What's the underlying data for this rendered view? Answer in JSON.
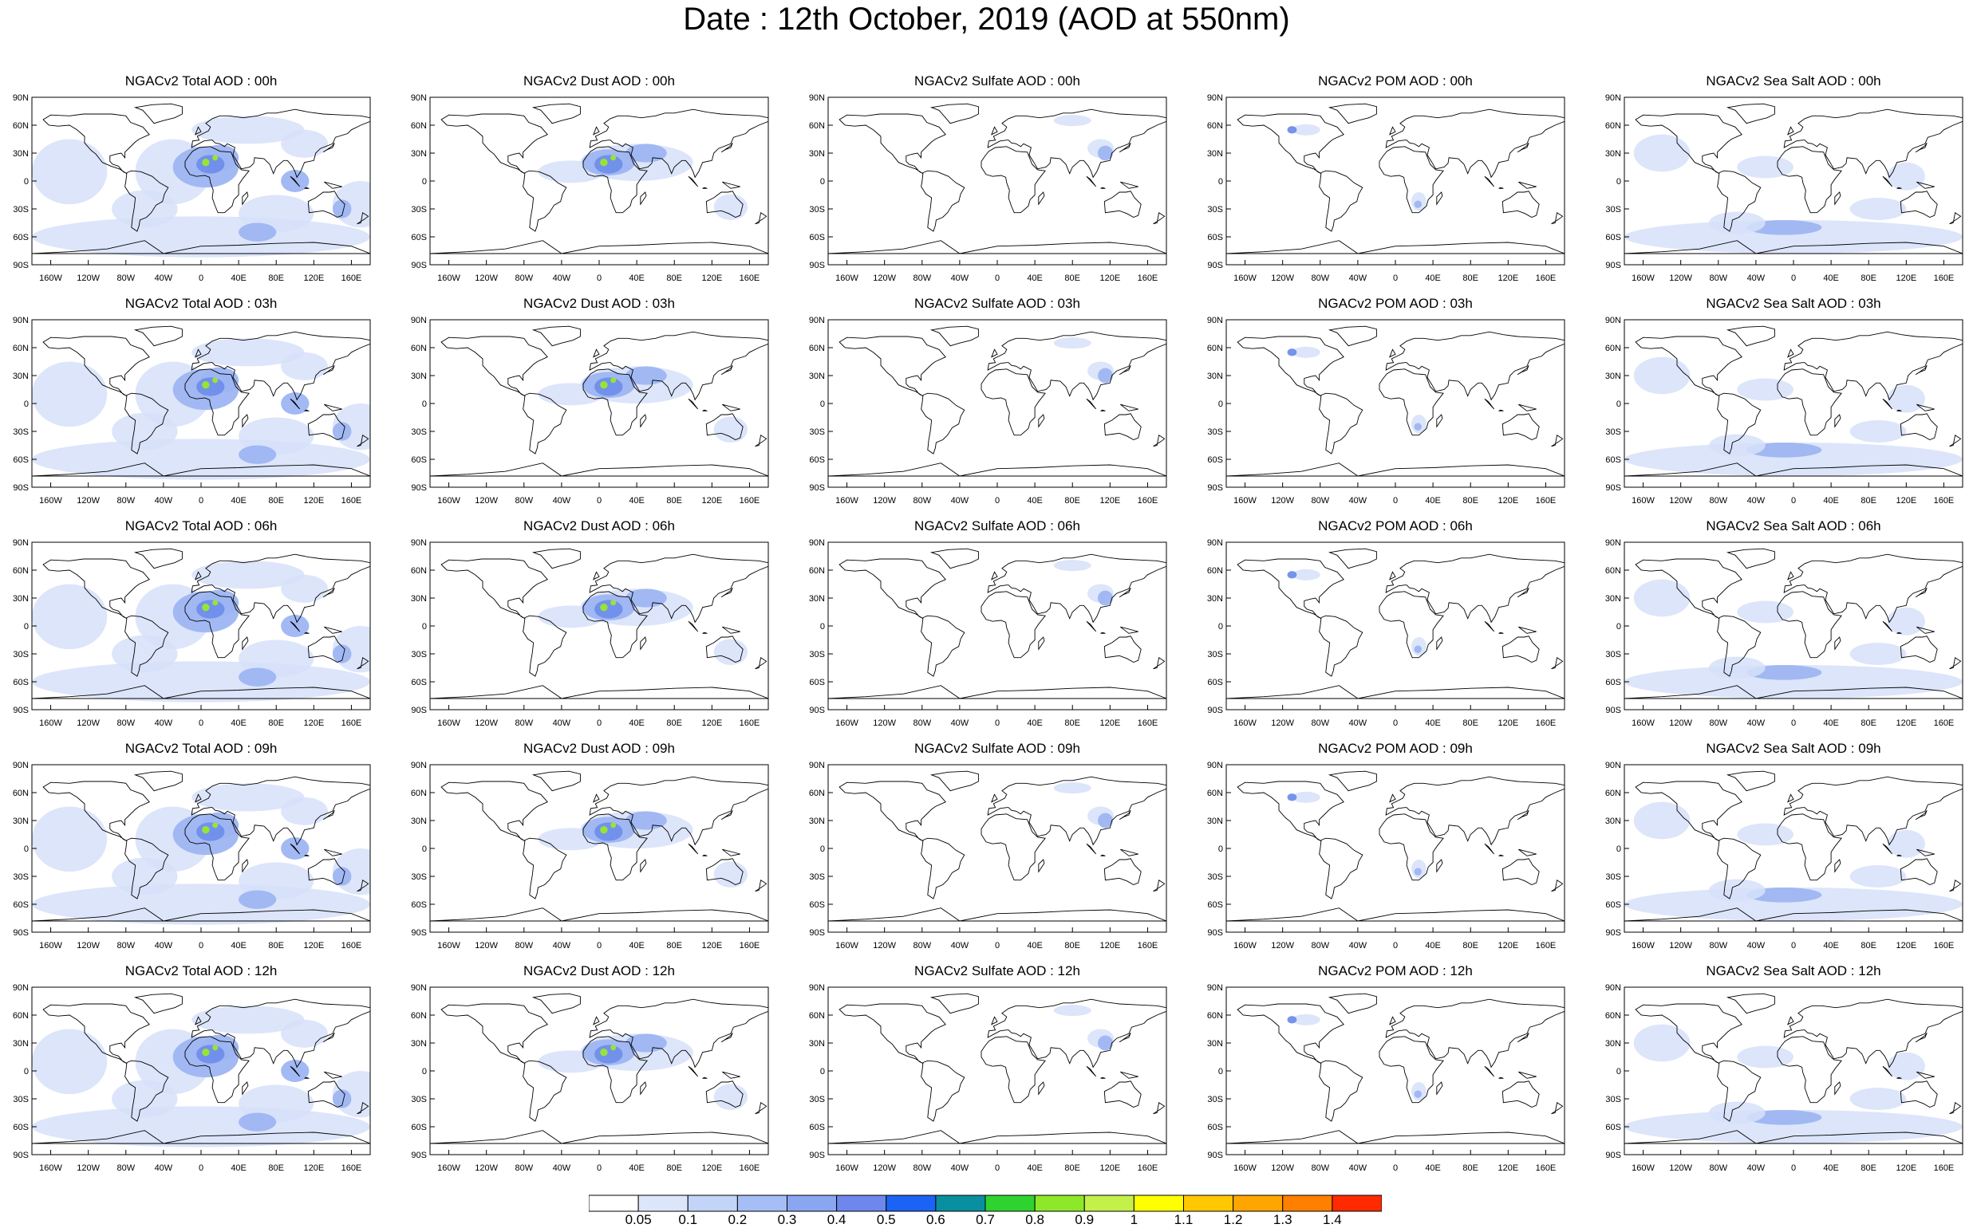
{
  "title": "Date : 12th October, 2019 (AOD at 550nm)",
  "panels": [
    {
      "title": "NGACv2 Total AOD : 00h",
      "species": "total"
    },
    {
      "title": "NGACv2 Dust AOD : 00h",
      "species": "dust"
    },
    {
      "title": "NGACv2 Sulfate AOD : 00h",
      "species": "sulfate"
    },
    {
      "title": "NGACv2 POM AOD : 00h",
      "species": "pom"
    },
    {
      "title": "NGACv2 Sea Salt AOD : 00h",
      "species": "seasalt"
    },
    {
      "title": "NGACv2 Total AOD : 03h",
      "species": "total"
    },
    {
      "title": "NGACv2 Dust AOD : 03h",
      "species": "dust"
    },
    {
      "title": "NGACv2 Sulfate AOD : 03h",
      "species": "sulfate"
    },
    {
      "title": "NGACv2 POM AOD : 03h",
      "species": "pom"
    },
    {
      "title": "NGACv2 Sea Salt AOD : 03h",
      "species": "seasalt"
    },
    {
      "title": "NGACv2 Total AOD : 06h",
      "species": "total"
    },
    {
      "title": "NGACv2 Dust AOD : 06h",
      "species": "dust"
    },
    {
      "title": "NGACv2 Sulfate AOD : 06h",
      "species": "sulfate"
    },
    {
      "title": "NGACv2 POM AOD : 06h",
      "species": "pom"
    },
    {
      "title": "NGACv2 Sea Salt AOD : 06h",
      "species": "seasalt"
    },
    {
      "title": "NGACv2 Total AOD : 09h",
      "species": "total"
    },
    {
      "title": "NGACv2 Dust AOD : 09h",
      "species": "dust"
    },
    {
      "title": "NGACv2 Sulfate AOD : 09h",
      "species": "sulfate"
    },
    {
      "title": "NGACv2 POM AOD : 09h",
      "species": "pom"
    },
    {
      "title": "NGACv2 Sea Salt  AOD : 09h",
      "species": "seasalt"
    },
    {
      "title": "NGACv2 Total AOD : 12h",
      "species": "total"
    },
    {
      "title": "NGACv2 Dust AOD : 12h",
      "species": "dust"
    },
    {
      "title": "NGACv2 Sulfate AOD : 12h",
      "species": "sulfate"
    },
    {
      "title": "NGACv2 POM  AOD : 12h",
      "species": "pom"
    },
    {
      "title": "NGACv2 Sea Salt  AOD : 12h",
      "species": "seasalt"
    }
  ],
  "lat_labels": [
    "90N",
    "60N",
    "30N",
    "0",
    "30S",
    "60S",
    "90S"
  ],
  "lon_labels": [
    "160W",
    "120W",
    "80W",
    "40W",
    "0",
    "40E",
    "80E",
    "120E",
    "160E"
  ],
  "colorbar": {
    "colors": [
      "#ffffff",
      "#dce6fb",
      "#c2d4f8",
      "#a5bef5",
      "#8aa6f1",
      "#6e87ec",
      "#1b63f4",
      "#0a8fa0",
      "#2fd32f",
      "#8ee82a",
      "#c4f04a",
      "#ffff00",
      "#ffc800",
      "#ffa500",
      "#ff7f00",
      "#ff2a00"
    ],
    "labels": [
      "0.05",
      "0.1",
      "0.2",
      "0.3",
      "0.4",
      "0.5",
      "0.6",
      "0.7",
      "0.8",
      "0.9",
      "1",
      "1.1",
      "1.2",
      "1.3",
      "1.4"
    ]
  },
  "colors": {
    "light_aod": "#d6e1f9",
    "mid_aod": "#9db5f2",
    "high_aod": "#6f8eea",
    "peak_aod": "#9be82e",
    "coastline": "#000000"
  }
}
